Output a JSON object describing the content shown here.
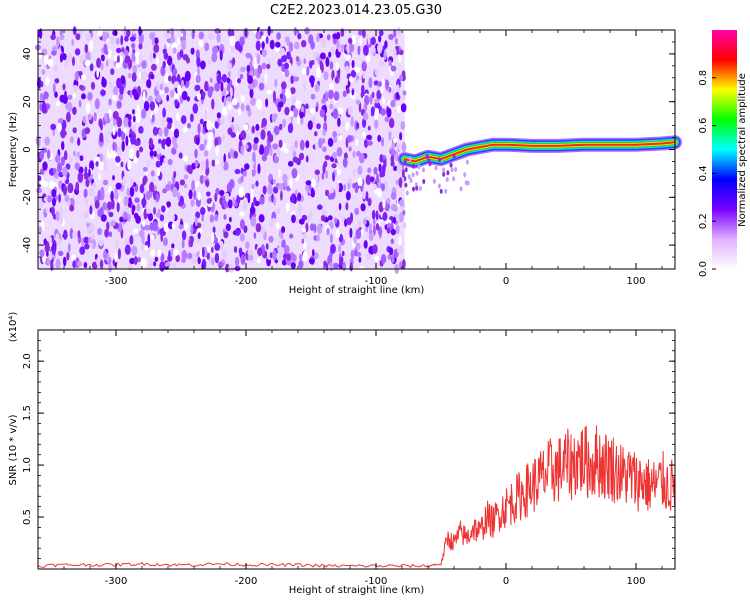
{
  "title": "C2E2.2023.014.23.05.G30",
  "chart_data": [
    {
      "type": "heatmap",
      "xlabel": "Height of straight line (km)",
      "ylabel": "Frequency (Hz)",
      "xlim": [
        -360,
        130
      ],
      "ylim": [
        -50,
        50
      ],
      "x_ticks": [
        -300,
        -200,
        -100,
        0,
        100
      ],
      "y_ticks": [
        -40,
        -20,
        0,
        20,
        40
      ],
      "noise_region_x": [
        -360,
        -78
      ],
      "signal_track": {
        "x": [
          -78,
          -70,
          -60,
          -50,
          -40,
          -30,
          -20,
          -10,
          0,
          20,
          40,
          60,
          80,
          100,
          120,
          130
        ],
        "freq_hz": [
          -4,
          -5,
          -3,
          -4,
          -2,
          0,
          1,
          2,
          2,
          1.5,
          1.5,
          2,
          2,
          2,
          2.5,
          3
        ]
      },
      "colorbar": {
        "label": "Normalized spectral amplitude",
        "range": [
          0,
          1
        ],
        "ticks": [
          0.0,
          0.2,
          0.4,
          0.6,
          0.8
        ],
        "colors": [
          "#ffffff",
          "#e0b0ff",
          "#7700ff",
          "#0000ff",
          "#00ffff",
          "#00ff00",
          "#ffff00",
          "#ff0000",
          "#ff00aa"
        ]
      }
    },
    {
      "type": "line",
      "xlabel": "Height of straight line (km)",
      "ylabel": "SNR (10 * v/v)",
      "yscale_label": "(x10⁴)",
      "xlim": [
        -360,
        130
      ],
      "ylim": [
        0,
        2.3
      ],
      "x_ticks": [
        -300,
        -200,
        -100,
        0,
        100
      ],
      "y_ticks": [
        0.5,
        1.0,
        1.5,
        2.0
      ],
      "y_tick_labels": [
        "0.5",
        "1.0",
        "1.5",
        "2.0"
      ],
      "series": [
        {
          "color": "#ee3333",
          "x": [
            -360,
            -340,
            -320,
            -300,
            -280,
            -260,
            -240,
            -220,
            -200,
            -180,
            -160,
            -140,
            -120,
            -100,
            -80,
            -60,
            -50,
            -45,
            -40,
            -35,
            -30,
            -25,
            -20,
            -15,
            -10,
            -5,
            0,
            5,
            10,
            15,
            20,
            25,
            30,
            35,
            40,
            45,
            50,
            55,
            60,
            65,
            70,
            75,
            80,
            85,
            90,
            95,
            100,
            105,
            110,
            115,
            120,
            125,
            130
          ],
          "y": [
            0.03,
            0.04,
            0.04,
            0.04,
            0.05,
            0.04,
            0.04,
            0.05,
            0.04,
            0.04,
            0.04,
            0.03,
            0.03,
            0.03,
            0.03,
            0.03,
            0.05,
            0.3,
            0.25,
            0.35,
            0.3,
            0.4,
            0.35,
            0.5,
            0.45,
            0.55,
            0.6,
            0.65,
            0.7,
            0.75,
            0.8,
            0.85,
            0.9,
            0.95,
            0.95,
            1.0,
            1.0,
            1.05,
            1.05,
            1.0,
            1.05,
            1.0,
            1.0,
            0.95,
            0.9,
            0.9,
            0.85,
            0.85,
            0.8,
            0.8,
            0.85,
            0.8,
            0.8
          ]
        }
      ]
    }
  ]
}
